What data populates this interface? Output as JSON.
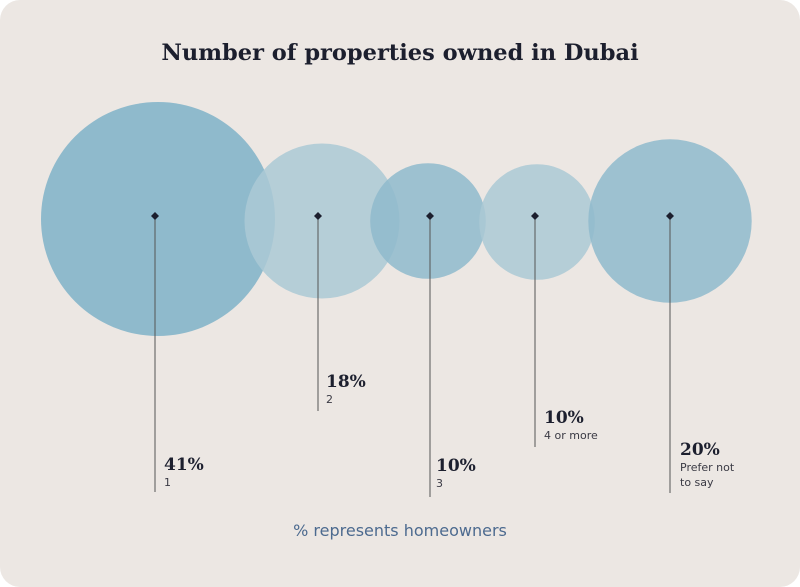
{
  "title": "Number of properties owned in Dubai",
  "footnote": "% represents homeowners",
  "colors": {
    "background": "#ece7e3",
    "bubble_dark": "#7fb1c8",
    "bubble_light": "#abc9d5",
    "bubble_mid": "#8fbacd",
    "text": "#1c1f2e",
    "footnote": "#4c6a8f",
    "leader": "#555555"
  },
  "chart_data": {
    "type": "bubble",
    "title": "Number of properties owned in Dubai",
    "note": "% represents homeowners",
    "unit": "%",
    "categories": [
      "1",
      "2",
      "3",
      "4 or more",
      "Prefer not to say"
    ],
    "values": [
      41,
      18,
      10,
      10,
      20
    ],
    "labels": [
      "41%",
      "18%",
      "10%",
      "10%",
      "20%"
    ],
    "category_lines": [
      [
        "1"
      ],
      [
        "2"
      ],
      [
        "3"
      ],
      [
        "4 or more"
      ],
      [
        "Prefer not",
        "to say"
      ]
    ],
    "colors": [
      "#7fb1c8",
      "#abc9d5",
      "#8fbacd",
      "#abc9d5",
      "#8fbacd"
    ]
  }
}
